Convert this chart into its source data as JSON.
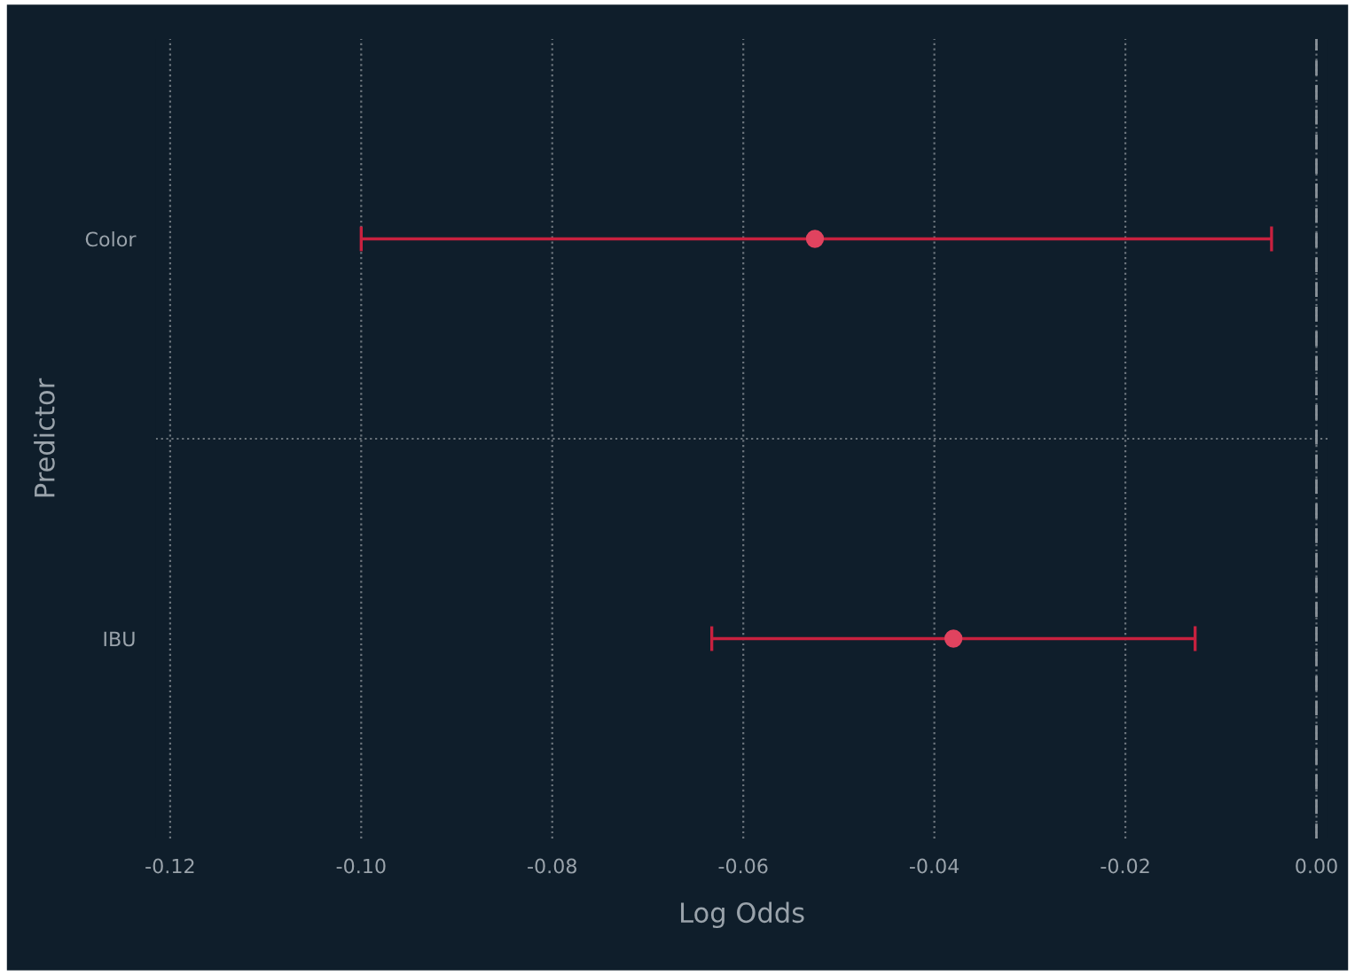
{
  "chart_data": {
    "type": "scatter",
    "orientation": "horizontal",
    "xlabel": "Log Odds",
    "ylabel": "Predictor",
    "categories": [
      "Color",
      "IBU"
    ],
    "series": [
      {
        "color": "#e0435f",
        "values": [
          -0.0525,
          -0.038
        ],
        "errors": [
          [
            -0.1,
            -0.0047
          ],
          [
            -0.0633,
            -0.0127
          ]
        ]
      }
    ],
    "xlim": [
      -0.1215,
      0.0012
    ],
    "xticks": [
      -0.12,
      {
        "value": -0.1,
        "label": "-0.10"
      },
      -0.08,
      -0.06,
      -0.04,
      -0.02,
      {
        "value": 0,
        "label": "0.00"
      }
    ],
    "grid": "x",
    "marker": "circle",
    "ref_lines": [
      {
        "axis": "x",
        "value": 0,
        "line_style": "dashed",
        "color": "#8a9299"
      }
    ]
  }
}
